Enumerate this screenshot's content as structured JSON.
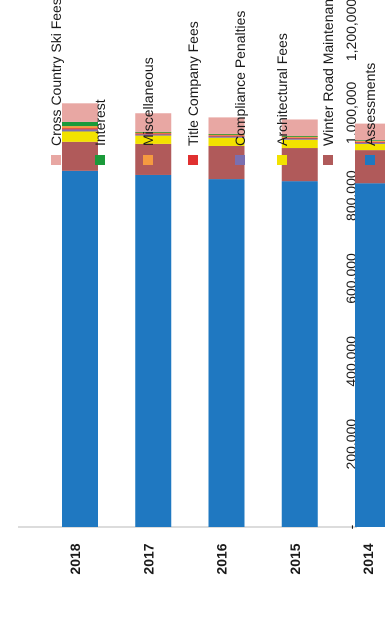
{
  "chart_data": {
    "type": "bar",
    "stacked": true,
    "orientation": "vertical",
    "image_rotated": "90deg-counterclockwise",
    "categories": [
      "2014",
      "2015",
      "2016",
      "2017",
      "2018"
    ],
    "ylim": [
      0,
      1200000
    ],
    "yticks": [
      {
        "value": 0,
        "label": "-"
      },
      {
        "value": 200000,
        "label": "200,000"
      },
      {
        "value": 400000,
        "label": "400,000"
      },
      {
        "value": 600000,
        "label": "600,000"
      },
      {
        "value": 800000,
        "label": "800,000"
      },
      {
        "value": 1000000,
        "label": "1,000,000"
      },
      {
        "value": 1200000,
        "label": "1,200,000"
      }
    ],
    "grid": false,
    "legend_position": "top",
    "series": [
      {
        "name": "Assessments",
        "color": "#1f78c1",
        "values": [
          830000,
          835000,
          840000,
          850000,
          860000
        ]
      },
      {
        "name": "Winter Road Maintenance",
        "color": "#b05a5a",
        "values": [
          80000,
          80000,
          80000,
          75000,
          70000
        ]
      },
      {
        "name": "Architectural Fees",
        "color": "#f2e200",
        "values": [
          15000,
          20000,
          20000,
          20000,
          25000
        ]
      },
      {
        "name": "Compliance Penalties",
        "color": "#7a6fb0",
        "values": [
          3000,
          3000,
          3000,
          3000,
          5000
        ]
      },
      {
        "name": "Title Company Fees",
        "color": "#e03030",
        "values": [
          2000,
          2000,
          2000,
          2000,
          3000
        ]
      },
      {
        "name": "Miscellaneous",
        "color": "#f59a40",
        "values": [
          3000,
          3000,
          3000,
          3000,
          5000
        ]
      },
      {
        "name": "Interest",
        "color": "#1a9a3a",
        "values": [
          1000,
          1000,
          1000,
          1000,
          10000
        ]
      },
      {
        "name": "Cross Country Ski Fees",
        "color": "#e8a7a3",
        "values": [
          40000,
          40000,
          40000,
          45000,
          45000
        ]
      }
    ]
  }
}
